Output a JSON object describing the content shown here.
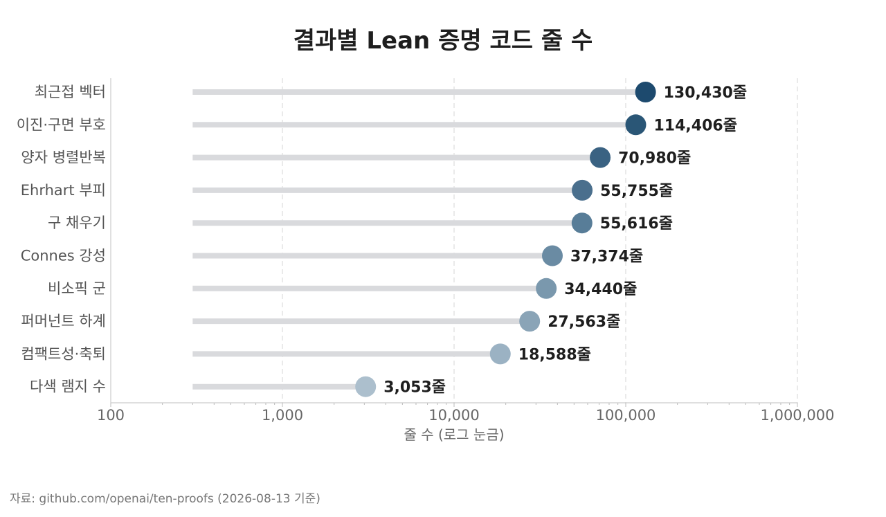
{
  "chart_data": {
    "type": "lollipop",
    "title": "결과별 Lean 증명 코드 줄 수",
    "xlabel": "줄 수 (로그 눈금)",
    "xscale": "log",
    "xlim": [
      100,
      1000000
    ],
    "xticks": [
      {
        "value": 100,
        "label": "100"
      },
      {
        "value": 1000,
        "label": "1,000"
      },
      {
        "value": 10000,
        "label": "10,000"
      },
      {
        "value": 100000,
        "label": "100,000"
      },
      {
        "value": 1000000,
        "label": "1,000,000"
      }
    ],
    "grid": true,
    "categories": [
      "최근접 벡터",
      "이진·구면 부호",
      "양자 병렬반복",
      "Ehrhart 부피",
      "구 채우기",
      "Connes 강성",
      "비소픽 군",
      "퍼머넌트 하계",
      "컴팩트성·축퇴",
      "다색 램지 수"
    ],
    "values": [
      130430,
      114406,
      70980,
      55755,
      55616,
      37374,
      34440,
      27563,
      18588,
      3053
    ],
    "value_labels": [
      "130,430줄",
      "114,406줄",
      "70,980줄",
      "55,755줄",
      "55,616줄",
      "37,374줄",
      "34,440줄",
      "27,563줄",
      "18,588줄",
      "3,053줄"
    ],
    "colors": [
      "#1d4a6e",
      "#2a5676",
      "#3a6282",
      "#4a6f8d",
      "#587d98",
      "#6a8ba3",
      "#7a98ad",
      "#8aa4b7",
      "#9bb2c3",
      "#acbfcd"
    ],
    "stem_color": "#d9dadd"
  },
  "source": "자료: github.com/openai/ten-proofs (2026-08-13 기준)"
}
